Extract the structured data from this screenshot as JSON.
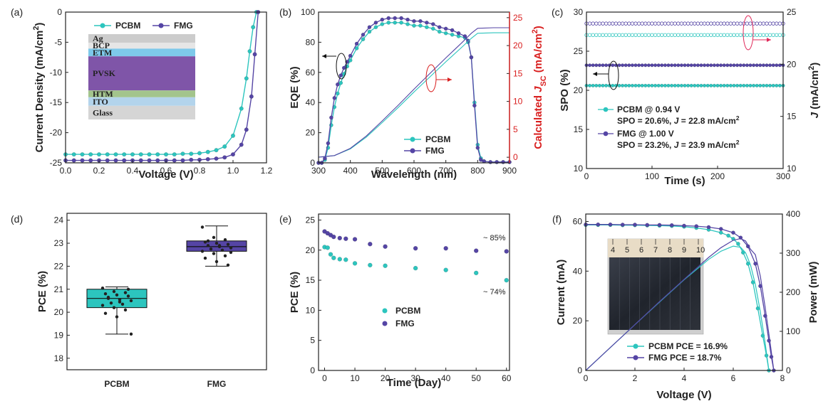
{
  "colors": {
    "pcbm": "#2cc5be",
    "fmg": "#5545a5",
    "red": "#d92020",
    "axis": "#222222"
  },
  "chart_data": [
    {
      "id": "a",
      "panel_label": "(a)",
      "type": "line",
      "xlabel": "Voltage (V)",
      "ylabel_parts": [
        "Current Density (mA/cm",
        "2",
        ")"
      ],
      "xlim": [
        0,
        1.2
      ],
      "ylim": [
        -25,
        0
      ],
      "xticks": [
        "0.0",
        "0.2",
        "0.4",
        "0.6",
        "0.8",
        "1.0",
        "1.2"
      ],
      "yticks": [
        "0",
        "-5",
        "-10",
        "-15",
        "-20",
        "-25"
      ],
      "series": [
        {
          "name": "PCBM",
          "color_key": "pcbm",
          "x": [
            0,
            0.05,
            0.1,
            0.15,
            0.2,
            0.25,
            0.3,
            0.35,
            0.4,
            0.45,
            0.5,
            0.55,
            0.6,
            0.65,
            0.7,
            0.75,
            0.8,
            0.85,
            0.9,
            0.95,
            1.0,
            1.05,
            1.08,
            1.1,
            1.12,
            1.14
          ],
          "y": [
            -23.6,
            -23.6,
            -23.6,
            -23.6,
            -23.6,
            -23.6,
            -23.6,
            -23.6,
            -23.6,
            -23.6,
            -23.6,
            -23.6,
            -23.6,
            -23.6,
            -23.5,
            -23.5,
            -23.4,
            -23.2,
            -22.9,
            -22.3,
            -20.5,
            -16.0,
            -11.0,
            -6.5,
            -2.5,
            0.0
          ]
        },
        {
          "name": "FMG",
          "color_key": "fmg",
          "x": [
            0,
            0.05,
            0.1,
            0.15,
            0.2,
            0.25,
            0.3,
            0.35,
            0.4,
            0.45,
            0.5,
            0.55,
            0.6,
            0.65,
            0.7,
            0.75,
            0.8,
            0.85,
            0.9,
            0.95,
            1.0,
            1.05,
            1.08,
            1.11,
            1.13,
            1.15
          ],
          "y": [
            -24.6,
            -24.6,
            -24.6,
            -24.6,
            -24.6,
            -24.6,
            -24.6,
            -24.6,
            -24.6,
            -24.6,
            -24.6,
            -24.6,
            -24.6,
            -24.6,
            -24.6,
            -24.5,
            -24.5,
            -24.4,
            -24.3,
            -24.1,
            -23.6,
            -22.0,
            -19.5,
            -14.0,
            -7.0,
            0.0
          ]
        }
      ],
      "inset_layers": [
        {
          "label": "Ag",
          "color": "#cccccc",
          "h": 1
        },
        {
          "label": "BCP",
          "color": "#e6e6e6",
          "h": 0.7
        },
        {
          "label": "ETM",
          "color": "#7ec9ea",
          "h": 0.9
        },
        {
          "label": "PVSK",
          "color": "#7f55a8",
          "h": 4.0
        },
        {
          "label": "HTM",
          "color": "#a3c48c",
          "h": 0.8
        },
        {
          "label": "ITO",
          "color": "#b3d4ec",
          "h": 1.0
        },
        {
          "label": "Glass",
          "color": "#d5d5d5",
          "h": 1.6
        }
      ]
    },
    {
      "id": "b",
      "panel_label": "(b)",
      "type": "line",
      "xlabel": "Wavelength (nm)",
      "ylabel": "EQE (%)",
      "y2label_parts": [
        "Calculated ",
        "J",
        "SC",
        " (mA/cm",
        "2",
        ")"
      ],
      "xlim": [
        300,
        900
      ],
      "ylim": [
        0,
        100
      ],
      "y2lim": [
        -1,
        26
      ],
      "xticks": [
        "300",
        "400",
        "500",
        "600",
        "700",
        "800",
        "900"
      ],
      "yticks": [
        "0",
        "20",
        "40",
        "60",
        "80",
        "100"
      ],
      "y2ticks": [
        "0",
        "5",
        "10",
        "15",
        "20",
        "25"
      ],
      "series": [
        {
          "name": "PCBM",
          "color_key": "pcbm",
          "x": [
            300,
            310,
            320,
            330,
            340,
            350,
            360,
            370,
            380,
            390,
            400,
            420,
            440,
            460,
            480,
            500,
            520,
            540,
            560,
            580,
            600,
            620,
            640,
            660,
            680,
            700,
            720,
            740,
            760,
            770,
            780,
            790,
            800,
            810,
            820,
            840,
            860,
            880,
            900
          ],
          "y": [
            0,
            0,
            2,
            10,
            25,
            37,
            46,
            53,
            59,
            64,
            68,
            76,
            82,
            87,
            90,
            92,
            93,
            93,
            93,
            92,
            91,
            91,
            90,
            89,
            87,
            86,
            85,
            84,
            83,
            80,
            70,
            40,
            12,
            3,
            1,
            0.5,
            0.5,
            0.5,
            0.5
          ]
        },
        {
          "name": "FMG",
          "color_key": "fmg",
          "x": [
            300,
            310,
            320,
            330,
            340,
            350,
            360,
            370,
            380,
            390,
            400,
            420,
            440,
            460,
            480,
            500,
            520,
            540,
            560,
            580,
            600,
            620,
            640,
            660,
            680,
            700,
            720,
            740,
            760,
            770,
            780,
            790,
            800,
            810,
            820,
            840,
            860,
            880,
            900
          ],
          "y": [
            0,
            0,
            3,
            13,
            30,
            43,
            52,
            58,
            63,
            67,
            71,
            79,
            85,
            90,
            93,
            95,
            96,
            96,
            96,
            95,
            94,
            94,
            93,
            92,
            90,
            89,
            88,
            86,
            84,
            81,
            70,
            38,
            10,
            2,
            1,
            0.5,
            0.5,
            0.5,
            0.5
          ]
        },
        {
          "name": "PCBM Jsc",
          "color_key": "pcbm",
          "axis": "y2",
          "x": [
            300,
            350,
            400,
            450,
            500,
            550,
            600,
            650,
            700,
            750,
            780,
            800,
            850,
            900
          ],
          "y": [
            0,
            0.3,
            1.5,
            3.6,
            6.2,
            8.9,
            11.7,
            14.4,
            17.1,
            19.7,
            21.3,
            22.2,
            22.3,
            22.3
          ]
        },
        {
          "name": "FMG Jsc",
          "color_key": "fmg",
          "axis": "y2",
          "x": [
            300,
            350,
            400,
            450,
            500,
            550,
            600,
            650,
            700,
            750,
            780,
            800,
            850,
            900
          ],
          "y": [
            0,
            0.3,
            1.6,
            3.8,
            6.5,
            9.3,
            12.2,
            15.0,
            17.8,
            20.5,
            22.2,
            23.1,
            23.2,
            23.2
          ]
        }
      ]
    },
    {
      "id": "c",
      "panel_label": "(c)",
      "type": "scatter",
      "xlabel": "Time (s)",
      "ylabel": "SPO (%)",
      "y2label_parts": [
        "J",
        " (mA/cm",
        "2",
        ")"
      ],
      "xlim": [
        0,
        300
      ],
      "ylim": [
        10,
        30
      ],
      "y2lim": [
        10,
        25
      ],
      "xticks": [
        "0",
        "100",
        "200",
        "300"
      ],
      "yticks": [
        "10",
        "15",
        "20",
        "25",
        "30"
      ],
      "y2ticks": [
        "10",
        "15",
        "20",
        "25"
      ],
      "series": [
        {
          "name": "PCBM SPO",
          "color_key": "pcbm",
          "level": 20.6
        },
        {
          "name": "FMG SPO",
          "color_key": "fmg",
          "level": 23.2
        },
        {
          "name": "PCBM J",
          "color_key": "pcbm",
          "axis": "y2",
          "level": 22.8
        },
        {
          "name": "FMG J",
          "color_key": "fmg",
          "axis": "y2",
          "level": 23.9
        }
      ],
      "legend": [
        {
          "line1": "PCBM @ 0.94 V",
          "line2_a": "SPO = 20.6%,  ",
          "line2_b": "J",
          "line2_c": " = 22.8 mA/cm",
          "line2_sup": "2"
        },
        {
          "line1": "FMG @ 1.00 V",
          "line2_a": "SPO = 23.2%, ",
          "line2_b": "J",
          "line2_c": " = 23.9 mA/cm",
          "line2_sup": "2"
        }
      ]
    },
    {
      "id": "d",
      "panel_label": "(d)",
      "type": "box",
      "ylabel": "PCE (%)",
      "ylim": [
        17.5,
        24.3
      ],
      "yticks": [
        "18",
        "19",
        "20",
        "21",
        "22",
        "23",
        "24"
      ],
      "categories": [
        "PCBM",
        "FMG"
      ],
      "boxes": [
        {
          "color_key": "pcbm",
          "min": 19.05,
          "q1": 20.2,
          "median": 20.6,
          "q3": 21.0,
          "max": 21.1,
          "points": [
            21.05,
            20.9,
            20.85,
            20.8,
            20.75,
            20.7,
            20.6,
            20.55,
            20.5,
            20.4,
            20.35,
            20.3,
            20.2,
            20.1,
            19.95,
            19.8,
            21.0,
            20.65,
            20.45,
            19.05
          ]
        },
        {
          "color_key": "fmg",
          "min": 22.0,
          "q1": 22.65,
          "median": 22.85,
          "q3": 23.1,
          "max": 23.75,
          "points": [
            23.7,
            23.25,
            23.15,
            23.05,
            23.0,
            22.95,
            22.9,
            22.85,
            22.8,
            22.75,
            22.7,
            22.65,
            22.55,
            22.45,
            22.35,
            22.2,
            22.05,
            23.1,
            22.9,
            22.6
          ]
        }
      ]
    },
    {
      "id": "e",
      "panel_label": "(e)",
      "type": "scatter",
      "xlabel": "Time (Day)",
      "ylabel": "PCE (%)",
      "xlim": [
        -2,
        61
      ],
      "ylim": [
        0,
        26
      ],
      "xticks": [
        "0",
        "10",
        "20",
        "30",
        "40",
        "50",
        "60"
      ],
      "yticks": [
        "0",
        "5",
        "10",
        "15",
        "20",
        "25"
      ],
      "series": [
        {
          "name": "PCBM",
          "color_key": "pcbm",
          "x": [
            0,
            1,
            2,
            3,
            5,
            7,
            10,
            15,
            20,
            30,
            40,
            50,
            60
          ],
          "y": [
            20.5,
            20.4,
            19.3,
            18.7,
            18.5,
            18.4,
            17.8,
            17.5,
            17.4,
            17.0,
            16.7,
            16.2,
            15.0
          ]
        },
        {
          "name": "FMG",
          "color_key": "fmg",
          "x": [
            0,
            1,
            2,
            3,
            5,
            7,
            10,
            15,
            20,
            30,
            40,
            50,
            60
          ],
          "y": [
            23.1,
            22.8,
            22.5,
            22.2,
            22.0,
            21.9,
            21.8,
            21.0,
            20.6,
            20.3,
            20.3,
            19.9,
            19.8
          ]
        }
      ],
      "annotations": [
        "~ 85%",
        "~ 74%"
      ]
    },
    {
      "id": "f",
      "panel_label": "(f)",
      "type": "line",
      "xlabel": "Voltage (V)",
      "ylabel": "Current (mA)",
      "y2label": "Power (mW)",
      "xlim": [
        0,
        8
      ],
      "ylim": [
        0,
        63
      ],
      "y2lim": [
        0,
        400
      ],
      "xticks": [
        "0",
        "2",
        "4",
        "6",
        "8"
      ],
      "yticks": [
        "0",
        "20",
        "40",
        "60"
      ],
      "y2ticks": [
        "0",
        "100",
        "200",
        "300",
        "400"
      ],
      "series": [
        {
          "name": "PCBM PCE = 16.9%",
          "color_key": "pcbm",
          "x": [
            0,
            0.5,
            1,
            1.5,
            2,
            2.5,
            3,
            3.5,
            4,
            4.5,
            5,
            5.5,
            5.8,
            6.0,
            6.2,
            6.4,
            6.6,
            6.8,
            7.0,
            7.2,
            7.35,
            7.45
          ],
          "y": [
            58.6,
            58.6,
            58.6,
            58.5,
            58.5,
            58.4,
            58.3,
            58.2,
            57.9,
            57.4,
            56.7,
            55.5,
            54.3,
            53.0,
            51.0,
            47.5,
            43.0,
            35.5,
            25.0,
            14.0,
            6.0,
            0
          ]
        },
        {
          "name": "FMG PCE = 18.7%",
          "color_key": "fmg",
          "x": [
            0,
            0.5,
            1,
            1.5,
            2,
            2.5,
            3,
            3.5,
            4,
            4.5,
            5,
            5.5,
            6.0,
            6.3,
            6.6,
            6.9,
            7.1,
            7.3,
            7.45,
            7.55,
            7.65
          ],
          "y": [
            58.8,
            58.8,
            58.8,
            58.7,
            58.7,
            58.6,
            58.6,
            58.5,
            58.3,
            58.1,
            57.7,
            57.0,
            55.5,
            53.5,
            50.0,
            43.0,
            34.0,
            22.0,
            12.0,
            5.5,
            0
          ]
        },
        {
          "name": "PCBM power",
          "color_key": "pcbm",
          "axis": "y2",
          "x": [
            0,
            1,
            2,
            3,
            4,
            5,
            5.5,
            6.0,
            6.3,
            6.5,
            6.7,
            6.9,
            7.1,
            7.3,
            7.45
          ],
          "y": [
            0,
            58.6,
            117,
            175,
            232,
            284,
            305,
            318,
            315,
            301,
            270,
            220,
            150,
            70,
            0
          ]
        },
        {
          "name": "FMG power",
          "color_key": "fmg",
          "axis": "y2",
          "x": [
            0,
            1,
            2,
            3,
            4,
            5,
            5.5,
            6.0,
            6.3,
            6.5,
            6.7,
            6.9,
            7.1,
            7.3,
            7.5,
            7.65
          ],
          "y": [
            0,
            58.8,
            117,
            176,
            233,
            289,
            314,
            333,
            337,
            331,
            310,
            296,
            241,
            161,
            70,
            0
          ]
        }
      ],
      "inset_ruler": [
        "4",
        "5",
        "6",
        "7",
        "8",
        "9",
        "10"
      ]
    }
  ]
}
